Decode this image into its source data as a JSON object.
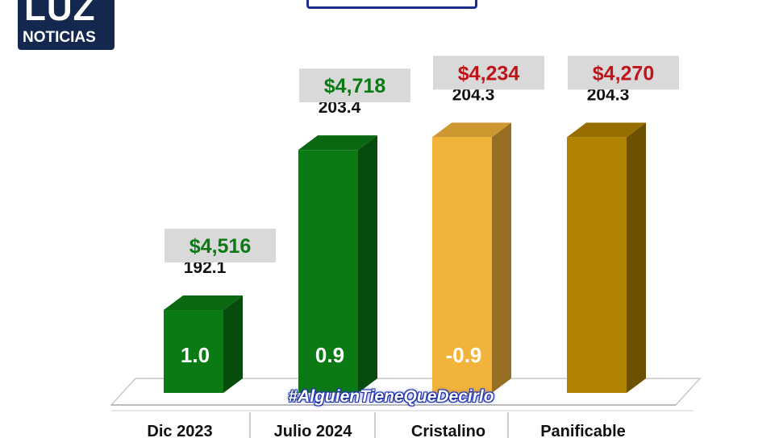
{
  "logo": {
    "mark": "LUZ",
    "word": "NOTICIAS"
  },
  "hashtag": "#AlguienTieneQueDecirlo",
  "colors": {
    "green": "#0b7a14",
    "yellow": "#f2b33a",
    "gold": "#b08300",
    "red": "#c0141b",
    "label_bg": "#d9d9d9"
  },
  "chart_data": {
    "type": "bar",
    "categories": [
      "Dic 2023",
      "Julio 2024",
      "Cristalino",
      "Panificable"
    ],
    "values": [
      192.1,
      203.4,
      204.3,
      204.3
    ],
    "price_labels": [
      "$4,516",
      "$4,718",
      "$4,234",
      "$4,270"
    ],
    "inner_labels": [
      "1.0",
      "0.9",
      "-0.9",
      ""
    ],
    "value_labels": [
      "192.1",
      "203.4",
      "204.3",
      "204.3"
    ]
  }
}
